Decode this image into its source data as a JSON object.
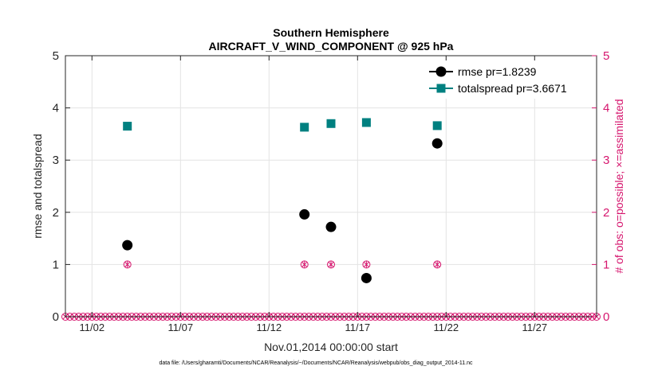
{
  "chart_data": {
    "type": "scatter",
    "title": "Southern Hemisphere",
    "subtitle": "AIRCRAFT_V_WIND_COMPONENT @ 925 hPa",
    "xlabel": "Nov.01,2014 00:00:00 start",
    "ylabel": "rmse and totalspread",
    "ylabel_right": "# of obs: o=possible; ×=assimilated",
    "xlim": [
      0.5,
      30.5
    ],
    "ylim": [
      0,
      5
    ],
    "ylim_right": [
      0,
      5
    ],
    "x_ticks": [
      {
        "value": 2,
        "label": "11/02"
      },
      {
        "value": 7,
        "label": "11/07"
      },
      {
        "value": 12,
        "label": "11/12"
      },
      {
        "value": 17,
        "label": "11/17"
      },
      {
        "value": 22,
        "label": "11/22"
      },
      {
        "value": 27,
        "label": "11/27"
      }
    ],
    "y_ticks": [
      "0",
      "1",
      "2",
      "3",
      "4",
      "5"
    ],
    "y_ticks_right": [
      "0",
      "1",
      "2",
      "3",
      "4",
      "5"
    ],
    "grid": true,
    "legend_position": "top-right",
    "series": [
      {
        "name": "rmse pr=1.8239",
        "color": "#000000",
        "marker": "circle",
        "x": [
          4,
          14,
          15.5,
          17.5,
          21.5
        ],
        "y": [
          1.37,
          1.96,
          1.72,
          0.74,
          3.32
        ]
      },
      {
        "name": "totalspread pr=3.6671",
        "color": "#008080",
        "marker": "square",
        "x": [
          4,
          14,
          15.5,
          17.5,
          21.5
        ],
        "y": [
          3.65,
          3.63,
          3.7,
          3.72,
          3.66
        ]
      }
    ],
    "obs_counts": {
      "color": "#d6166e",
      "x_start": 0.5,
      "x_end": 30.5,
      "x_step": 0.25,
      "nonzero_x": [
        4,
        14,
        15.5,
        17.5,
        21.5
      ],
      "nonzero_value": 1
    }
  },
  "footer": {
    "data_file": "data file: /Users/gharamti/Documents/NCAR/Reanalysis/~/Documents/NCAR/Reanalysis/webpub/obs_diag_output_2014-11.nc"
  }
}
